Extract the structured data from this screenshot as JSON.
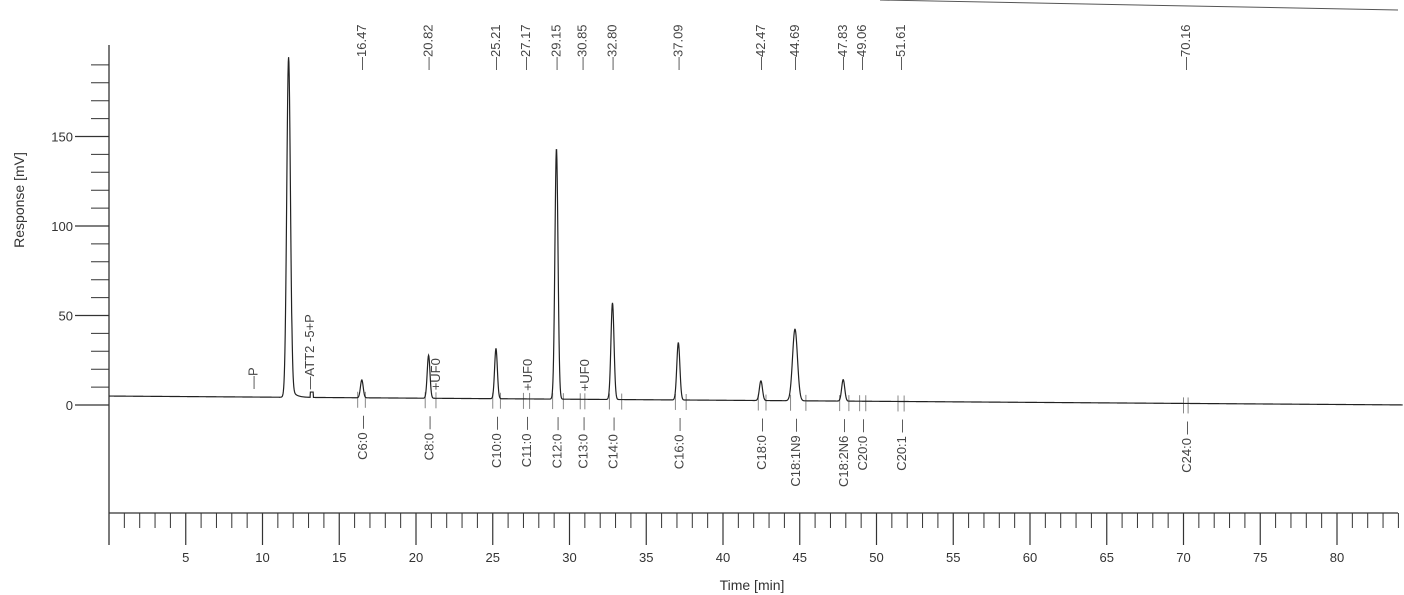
{
  "chart_data": {
    "type": "line",
    "title": "",
    "xlabel": "Time [min]",
    "ylabel": "Response [mV]",
    "xlim": [
      0,
      85
    ],
    "ylim": [
      -60,
      195
    ],
    "x_ticks": [
      5,
      10,
      15,
      20,
      25,
      30,
      35,
      40,
      45,
      50,
      55,
      60,
      65,
      70,
      75,
      80
    ],
    "y_ticks": [
      0,
      50,
      100,
      150
    ],
    "grid": false,
    "legend": "none",
    "baseline": {
      "start_time": 0,
      "start_value": 5,
      "end_time": 85,
      "end_value": 0
    },
    "series": [
      {
        "color": "#222222",
        "peaks": [
          {
            "time": 11.7,
            "height": 190,
            "width": 0.12
          },
          {
            "time": 16.47,
            "height": 10,
            "width": 0.09
          },
          {
            "time": 20.82,
            "height": 24,
            "width": 0.09
          },
          {
            "time": 25.21,
            "height": 28,
            "width": 0.09
          },
          {
            "time": 29.15,
            "height": 140,
            "width": 0.1
          },
          {
            "time": 32.8,
            "height": 54,
            "width": 0.1
          },
          {
            "time": 37.09,
            "height": 32,
            "width": 0.1
          },
          {
            "time": 42.47,
            "height": 11,
            "width": 0.1
          },
          {
            "time": 44.69,
            "height": 40,
            "width": 0.16
          },
          {
            "time": 47.83,
            "height": 12,
            "width": 0.1
          }
        ]
      }
    ],
    "top_annotations": [
      {
        "time": 16.47,
        "text": "—16.47"
      },
      {
        "time": 20.82,
        "text": "—20.82"
      },
      {
        "time": 25.21,
        "text": "—25.21"
      },
      {
        "time": 27.17,
        "text": "—27.17"
      },
      {
        "time": 29.15,
        "text": "—29.15"
      },
      {
        "time": 30.85,
        "text": "—30.85"
      },
      {
        "time": 32.8,
        "text": "—32.80"
      },
      {
        "time": 37.09,
        "text": "—37.09"
      },
      {
        "time": 42.47,
        "text": "—42.47"
      },
      {
        "time": 44.69,
        "text": "—44.69"
      },
      {
        "time": 47.83,
        "text": "—47.83"
      },
      {
        "time": 49.06,
        "text": "—49.06"
      },
      {
        "time": 51.61,
        "text": "—51.61"
      },
      {
        "time": 70.16,
        "text": "—70.16"
      }
    ],
    "peak_annotations": [
      {
        "time": 9.4,
        "text": "—P"
      },
      {
        "time": 13.1,
        "text": "—ATT2 -5+P"
      },
      {
        "time": 21.3,
        "text": "+UF0"
      },
      {
        "time": 27.3,
        "text": "+UF0"
      },
      {
        "time": 31.0,
        "text": "+UF0"
      }
    ],
    "compound_labels": [
      {
        "time": 16.47,
        "text": "C6:0 —"
      },
      {
        "time": 20.82,
        "text": "C8:0 —"
      },
      {
        "time": 25.21,
        "text": "C10:0 —"
      },
      {
        "time": 27.17,
        "text": "C11:0 —"
      },
      {
        "time": 29.15,
        "text": "C12:0 —"
      },
      {
        "time": 30.85,
        "text": "C13:0 —"
      },
      {
        "time": 32.8,
        "text": "C14:0 —"
      },
      {
        "time": 37.09,
        "text": "C16:0 —"
      },
      {
        "time": 42.47,
        "text": "C18:0 —"
      },
      {
        "time": 44.69,
        "text": "C18:1N9 —"
      },
      {
        "time": 47.83,
        "text": "C18:2N6 —"
      },
      {
        "time": 49.06,
        "text": "C20:0 —"
      },
      {
        "time": 51.61,
        "text": "C20:1 —"
      },
      {
        "time": 70.16,
        "text": "C24:0 —"
      }
    ],
    "integration_markers": [
      [
        16.2,
        16.7
      ],
      [
        20.6,
        21.3
      ],
      [
        25.0,
        25.5
      ],
      [
        27.0,
        27.4
      ],
      [
        28.9,
        29.6
      ],
      [
        30.7,
        31.0
      ],
      [
        32.6,
        33.4
      ],
      [
        36.9,
        37.6
      ],
      [
        42.3,
        42.8
      ],
      [
        44.4,
        45.4
      ],
      [
        47.6,
        48.2
      ],
      [
        48.9,
        49.3
      ],
      [
        51.4,
        51.8
      ],
      [
        70.0,
        70.3
      ]
    ]
  }
}
